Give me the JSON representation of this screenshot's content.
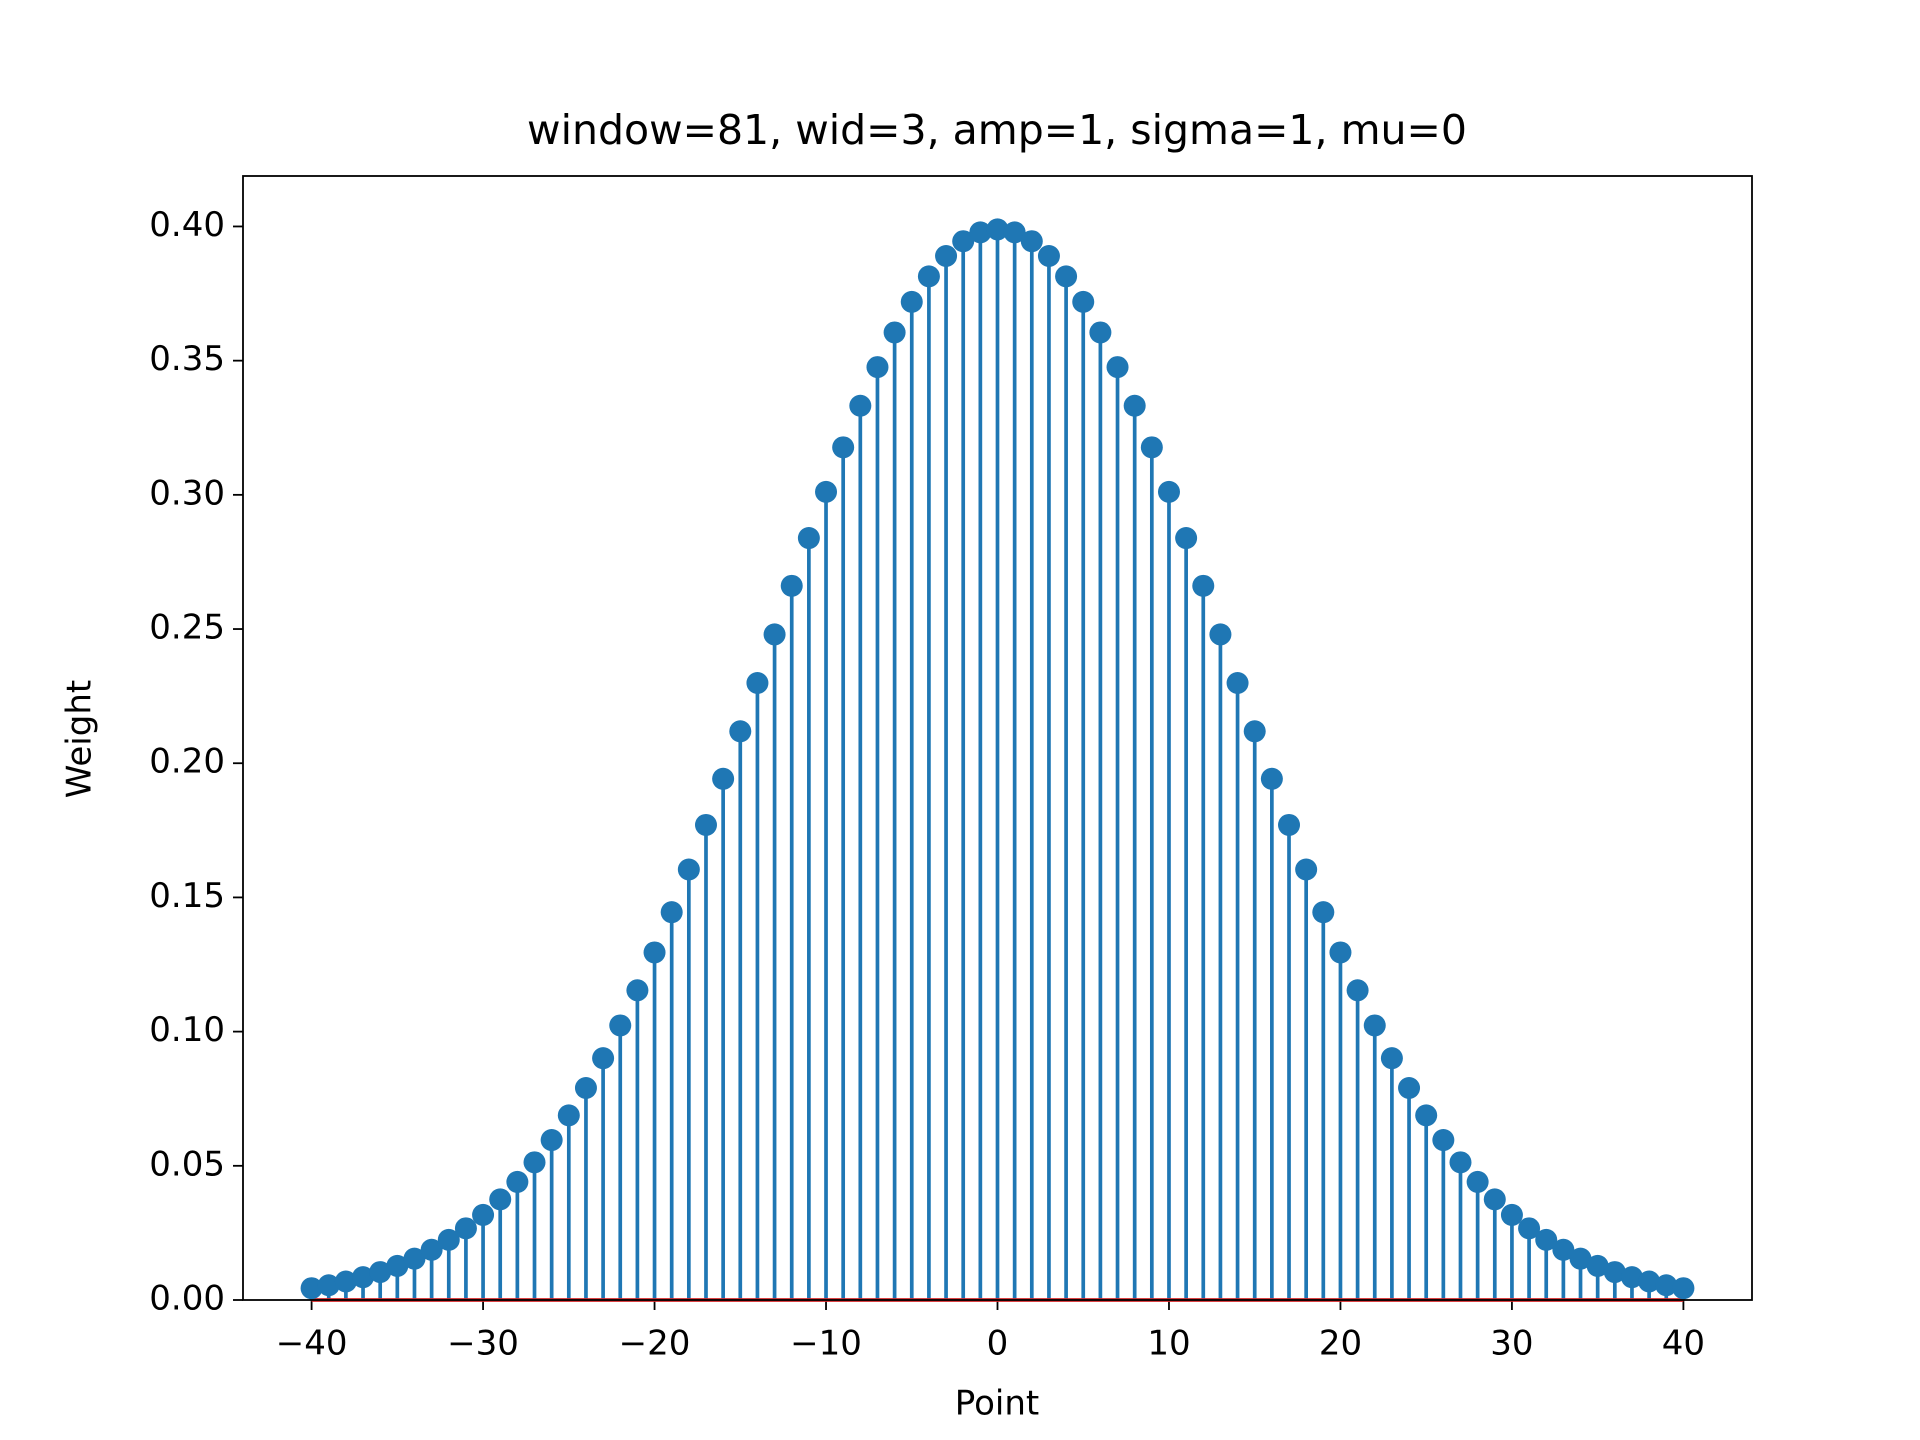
{
  "chart_data": {
    "type": "stem",
    "title": "window=81, wid=3, amp=1, sigma=1, mu=0",
    "xlabel": "Point",
    "ylabel": "Weight",
    "x": [
      -40,
      -39,
      -38,
      -37,
      -36,
      -35,
      -34,
      -33,
      -32,
      -31,
      -30,
      -29,
      -28,
      -27,
      -26,
      -25,
      -24,
      -23,
      -22,
      -21,
      -20,
      -19,
      -18,
      -17,
      -16,
      -15,
      -14,
      -13,
      -12,
      -11,
      -10,
      -9,
      -8,
      -7,
      -6,
      -5,
      -4,
      -3,
      -2,
      -1,
      0,
      1,
      2,
      3,
      4,
      5,
      6,
      7,
      8,
      9,
      10,
      11,
      12,
      13,
      14,
      15,
      16,
      17,
      18,
      19,
      20,
      21,
      22,
      23,
      24,
      25,
      26,
      27,
      28,
      29,
      30,
      31,
      32,
      33,
      34,
      35,
      36,
      37,
      38,
      39,
      40
    ],
    "values": [
      0.0044,
      0.0055,
      0.0069,
      0.0085,
      0.0104,
      0.0127,
      0.0154,
      0.0187,
      0.0224,
      0.0267,
      0.0317,
      0.0375,
      0.044,
      0.0513,
      0.0596,
      0.0688,
      0.079,
      0.0901,
      0.1023,
      0.1154,
      0.1295,
      0.1445,
      0.1604,
      0.177,
      0.1942,
      0.2119,
      0.2299,
      0.248,
      0.2661,
      0.2839,
      0.3011,
      0.3177,
      0.3332,
      0.3476,
      0.3605,
      0.3719,
      0.3814,
      0.389,
      0.3945,
      0.3978,
      0.3989,
      0.3978,
      0.3945,
      0.389,
      0.3814,
      0.3719,
      0.3605,
      0.3476,
      0.3332,
      0.3177,
      0.3011,
      0.2839,
      0.2661,
      0.248,
      0.2299,
      0.2119,
      0.1942,
      0.177,
      0.1604,
      0.1445,
      0.1295,
      0.1154,
      0.1023,
      0.0901,
      0.079,
      0.0688,
      0.0596,
      0.0513,
      0.044,
      0.0375,
      0.0317,
      0.0267,
      0.0224,
      0.0187,
      0.0154,
      0.0127,
      0.0104,
      0.0085,
      0.0069,
      0.0055,
      0.0044
    ],
    "color": "#1f77b4",
    "baseline_color": "#d62728",
    "xlim": [
      -44,
      44
    ],
    "xticks": [
      {
        "value": -40,
        "label": "−40"
      },
      {
        "value": -30,
        "label": "−30"
      },
      {
        "value": -20,
        "label": "−20"
      },
      {
        "value": -10,
        "label": "−10"
      },
      0,
      10,
      20,
      30,
      40
    ],
    "ylim": [
      0,
      0.4188
    ],
    "yticks": [
      {
        "value": 0,
        "label": "0.00"
      },
      {
        "value": 0.05,
        "label": "0.05"
      },
      {
        "value": 0.1,
        "label": "0.10"
      },
      {
        "value": 0.15,
        "label": "0.15"
      },
      {
        "value": 0.2,
        "label": "0.20"
      },
      {
        "value": 0.25,
        "label": "0.25"
      },
      {
        "value": 0.3,
        "label": "0.30"
      },
      {
        "value": 0.35,
        "label": "0.35"
      },
      {
        "value": 0.4,
        "label": "0.40"
      }
    ]
  }
}
